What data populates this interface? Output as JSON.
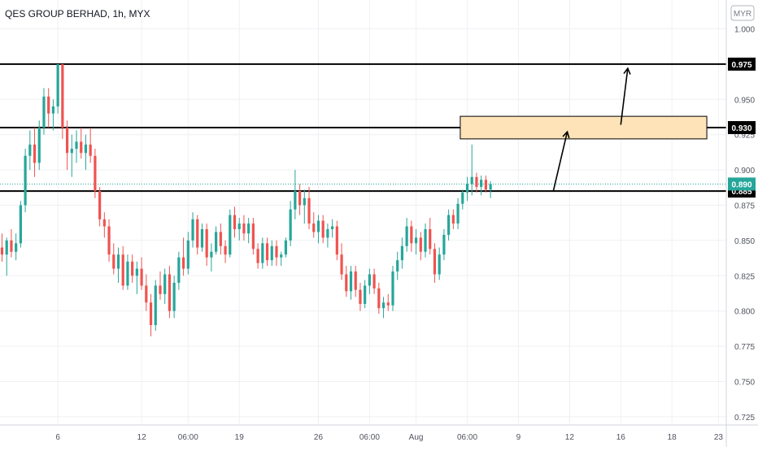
{
  "header": {
    "title": "QES GROUP BERHAD, 1h, MYX",
    "currency": "MYR"
  },
  "chart_data": {
    "type": "candlestick",
    "symbol": "QES GROUP BERHAD",
    "interval": "1h",
    "exchange": "MYX",
    "currency": "MYR",
    "ylim": [
      0.72,
      1.01
    ],
    "y_ticks": [
      "1.000",
      "0.975",
      "0.950",
      "0.925",
      "0.900",
      "0.875",
      "0.850",
      "0.825",
      "0.800",
      "0.775",
      "0.750",
      "0.725"
    ],
    "x_ticks": [
      {
        "label": "6",
        "bar": 12
      },
      {
        "label": "12",
        "bar": 30
      },
      {
        "label": "06:00",
        "bar": 40
      },
      {
        "label": "19",
        "bar": 51
      },
      {
        "label": "26",
        "bar": 68
      },
      {
        "label": "06:00",
        "bar": 79
      },
      {
        "label": "Aug",
        "bar": 89
      },
      {
        "label": "06:00",
        "bar": 100
      },
      {
        "label": "9",
        "bar": 111
      },
      {
        "label": "12",
        "bar": 122
      },
      {
        "label": "16",
        "bar": 133
      },
      {
        "label": "18",
        "bar": 144
      },
      {
        "label": "23",
        "bar": 154
      }
    ],
    "horizontal_lines": [
      {
        "price": 0.975,
        "label": "0.975"
      },
      {
        "price": 0.93,
        "label": "0.930"
      },
      {
        "price": 0.885,
        "label": "0.885"
      }
    ],
    "last_price": {
      "price": 0.89,
      "label": "0.890",
      "color": "#26a69a"
    },
    "zone": {
      "from": 0.922,
      "to": 0.938,
      "bar_start": 98.5,
      "bar_end": 151.5,
      "fill": "#fde3b7",
      "stroke": "#000000"
    },
    "arrows": [
      {
        "from_bar": 118.5,
        "from_price": 0.885,
        "to_bar": 121.5,
        "to_price": 0.927
      },
      {
        "from_bar": 133,
        "from_price": 0.932,
        "to_bar": 134.5,
        "to_price": 0.972
      }
    ],
    "up_color": "#26a69a",
    "down_color": "#ef5350",
    "candles": [
      [
        0.845,
        0.855,
        0.835,
        0.84
      ],
      [
        0.84,
        0.852,
        0.825,
        0.85
      ],
      [
        0.85,
        0.858,
        0.838,
        0.842
      ],
      [
        0.842,
        0.855,
        0.836,
        0.848
      ],
      [
        0.848,
        0.878,
        0.845,
        0.875
      ],
      [
        0.875,
        0.915,
        0.87,
        0.91
      ],
      [
        0.91,
        0.928,
        0.9,
        0.918
      ],
      [
        0.918,
        0.93,
        0.895,
        0.905
      ],
      [
        0.905,
        0.935,
        0.9,
        0.93
      ],
      [
        0.93,
        0.958,
        0.925,
        0.952
      ],
      [
        0.952,
        0.958,
        0.93,
        0.94
      ],
      [
        0.94,
        0.95,
        0.928,
        0.945
      ],
      [
        0.945,
        0.975,
        0.94,
        0.975
      ],
      [
        0.975,
        0.975,
        0.922,
        0.93
      ],
      [
        0.93,
        0.935,
        0.9,
        0.912
      ],
      [
        0.912,
        0.925,
        0.895,
        0.915
      ],
      [
        0.915,
        0.928,
        0.905,
        0.92
      ],
      [
        0.92,
        0.93,
        0.908,
        0.912
      ],
      [
        0.912,
        0.925,
        0.9,
        0.918
      ],
      [
        0.918,
        0.93,
        0.905,
        0.91
      ],
      [
        0.91,
        0.915,
        0.88,
        0.885
      ],
      [
        0.885,
        0.888,
        0.86,
        0.865
      ],
      [
        0.865,
        0.87,
        0.852,
        0.86
      ],
      [
        0.86,
        0.865,
        0.835,
        0.84
      ],
      [
        0.84,
        0.848,
        0.826,
        0.83
      ],
      [
        0.83,
        0.845,
        0.82,
        0.84
      ],
      [
        0.84,
        0.846,
        0.815,
        0.818
      ],
      [
        0.818,
        0.84,
        0.815,
        0.835
      ],
      [
        0.835,
        0.84,
        0.82,
        0.825
      ],
      [
        0.825,
        0.835,
        0.812,
        0.83
      ],
      [
        0.83,
        0.838,
        0.815,
        0.818
      ],
      [
        0.818,
        0.826,
        0.8,
        0.806
      ],
      [
        0.806,
        0.812,
        0.782,
        0.79
      ],
      [
        0.79,
        0.822,
        0.786,
        0.818
      ],
      [
        0.818,
        0.828,
        0.808,
        0.812
      ],
      [
        0.812,
        0.83,
        0.805,
        0.826
      ],
      [
        0.826,
        0.832,
        0.795,
        0.8
      ],
      [
        0.8,
        0.825,
        0.795,
        0.82
      ],
      [
        0.82,
        0.842,
        0.815,
        0.838
      ],
      [
        0.838,
        0.852,
        0.825,
        0.83
      ],
      [
        0.83,
        0.856,
        0.826,
        0.85
      ],
      [
        0.85,
        0.87,
        0.845,
        0.865
      ],
      [
        0.865,
        0.868,
        0.84,
        0.845
      ],
      [
        0.845,
        0.862,
        0.842,
        0.858
      ],
      [
        0.858,
        0.862,
        0.832,
        0.838
      ],
      [
        0.838,
        0.848,
        0.828,
        0.842
      ],
      [
        0.842,
        0.86,
        0.84,
        0.856
      ],
      [
        0.856,
        0.862,
        0.84,
        0.846
      ],
      [
        0.846,
        0.85,
        0.834,
        0.84
      ],
      [
        0.84,
        0.872,
        0.838,
        0.868
      ],
      [
        0.868,
        0.874,
        0.852,
        0.858
      ],
      [
        0.858,
        0.866,
        0.85,
        0.862
      ],
      [
        0.862,
        0.868,
        0.85,
        0.855
      ],
      [
        0.855,
        0.866,
        0.848,
        0.862
      ],
      [
        0.862,
        0.866,
        0.84,
        0.844
      ],
      [
        0.844,
        0.848,
        0.83,
        0.834
      ],
      [
        0.834,
        0.852,
        0.83,
        0.848
      ],
      [
        0.848,
        0.852,
        0.832,
        0.836
      ],
      [
        0.836,
        0.85,
        0.832,
        0.846
      ],
      [
        0.846,
        0.85,
        0.832,
        0.838
      ],
      [
        0.838,
        0.842,
        0.832,
        0.84
      ],
      [
        0.84,
        0.852,
        0.838,
        0.85
      ],
      [
        0.85,
        0.878,
        0.846,
        0.872
      ],
      [
        0.872,
        0.9,
        0.865,
        0.885
      ],
      [
        0.885,
        0.89,
        0.868,
        0.875
      ],
      [
        0.875,
        0.886,
        0.862,
        0.88
      ],
      [
        0.88,
        0.888,
        0.858,
        0.862
      ],
      [
        0.862,
        0.87,
        0.852,
        0.856
      ],
      [
        0.856,
        0.868,
        0.848,
        0.864
      ],
      [
        0.864,
        0.868,
        0.848,
        0.852
      ],
      [
        0.852,
        0.862,
        0.845,
        0.858
      ],
      [
        0.858,
        0.865,
        0.852,
        0.86
      ],
      [
        0.86,
        0.864,
        0.836,
        0.84
      ],
      [
        0.84,
        0.848,
        0.822,
        0.826
      ],
      [
        0.826,
        0.832,
        0.81,
        0.814
      ],
      [
        0.814,
        0.832,
        0.808,
        0.828
      ],
      [
        0.828,
        0.832,
        0.81,
        0.815
      ],
      [
        0.815,
        0.82,
        0.8,
        0.805
      ],
      [
        0.805,
        0.822,
        0.802,
        0.818
      ],
      [
        0.818,
        0.83,
        0.812,
        0.826
      ],
      [
        0.826,
        0.83,
        0.812,
        0.816
      ],
      [
        0.816,
        0.82,
        0.798,
        0.802
      ],
      [
        0.802,
        0.81,
        0.795,
        0.806
      ],
      [
        0.806,
        0.812,
        0.8,
        0.804
      ],
      [
        0.804,
        0.832,
        0.8,
        0.828
      ],
      [
        0.828,
        0.842,
        0.822,
        0.836
      ],
      [
        0.836,
        0.852,
        0.83,
        0.846
      ],
      [
        0.846,
        0.866,
        0.842,
        0.86
      ],
      [
        0.86,
        0.864,
        0.842,
        0.848
      ],
      [
        0.848,
        0.858,
        0.84,
        0.852
      ],
      [
        0.852,
        0.856,
        0.836,
        0.842
      ],
      [
        0.842,
        0.862,
        0.838,
        0.858
      ],
      [
        0.858,
        0.866,
        0.84,
        0.844
      ],
      [
        0.844,
        0.848,
        0.82,
        0.826
      ],
      [
        0.826,
        0.845,
        0.822,
        0.84
      ],
      [
        0.84,
        0.858,
        0.836,
        0.854
      ],
      [
        0.854,
        0.872,
        0.85,
        0.868
      ],
      [
        0.868,
        0.872,
        0.858,
        0.862
      ],
      [
        0.862,
        0.88,
        0.858,
        0.876
      ],
      [
        0.876,
        0.886,
        0.872,
        0.884
      ],
      [
        0.884,
        0.895,
        0.878,
        0.89
      ],
      [
        0.89,
        0.918,
        0.882,
        0.895
      ],
      [
        0.895,
        0.898,
        0.884,
        0.888
      ],
      [
        0.888,
        0.896,
        0.882,
        0.893
      ],
      [
        0.893,
        0.896,
        0.884,
        0.886
      ],
      [
        0.886,
        0.892,
        0.88,
        0.89
      ]
    ]
  }
}
